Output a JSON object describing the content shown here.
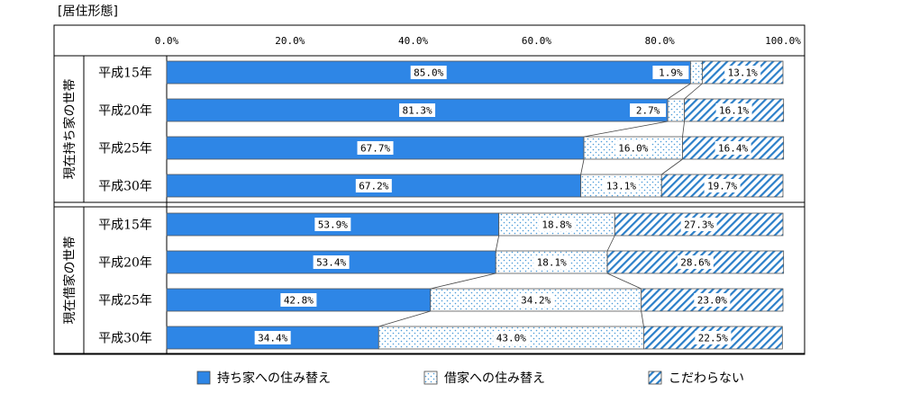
{
  "page": {
    "title": "[居住形態]"
  },
  "chart_data": {
    "type": "bar",
    "orientation": "horizontal",
    "stacked": true,
    "xlim": [
      0,
      100
    ],
    "x_ticks": [
      "0.0%",
      "20.0%",
      "40.0%",
      "60.0%",
      "80.0%",
      "100.0%"
    ],
    "x_tick_values": [
      0,
      20,
      40,
      60,
      80,
      100
    ],
    "groups": [
      {
        "label": "現在持ち家の世帯",
        "categories": [
          "平成15年",
          "平成20年",
          "平成25年",
          "平成30年"
        ]
      },
      {
        "label": "現在借家の世帯",
        "categories": [
          "平成15年",
          "平成20年",
          "平成25年",
          "平成30年"
        ]
      }
    ],
    "series": [
      {
        "name": "持ち家への住み替え",
        "color": "#2e86e6",
        "pattern": "solid",
        "values": [
          85.0,
          81.3,
          67.7,
          67.2,
          53.9,
          53.4,
          42.8,
          34.4
        ],
        "labels": [
          "85.0%",
          "81.3%",
          "67.7%",
          "67.2%",
          "53.9%",
          "53.4%",
          "42.8%",
          "34.4%"
        ]
      },
      {
        "name": "借家への住み替え",
        "color": "#3a8fd6",
        "pattern": "dots",
        "values": [
          1.9,
          2.7,
          16.0,
          13.1,
          18.8,
          18.1,
          34.2,
          43.0
        ],
        "labels": [
          "1.9%",
          "2.7%",
          "16.0%",
          "13.1%",
          "18.8%",
          "18.1%",
          "34.2%",
          "43.0%"
        ]
      },
      {
        "name": "こだわらない",
        "color": "#2b7fc9",
        "pattern": "hatch",
        "values": [
          13.1,
          16.1,
          16.4,
          19.7,
          27.3,
          28.6,
          23.0,
          22.5
        ],
        "labels": [
          "13.1%",
          "16.1%",
          "16.4%",
          "19.7%",
          "27.3%",
          "28.6%",
          "23.0%",
          "22.5%"
        ]
      }
    ],
    "legend": "bottom",
    "grid": false,
    "connector_lines": true
  }
}
